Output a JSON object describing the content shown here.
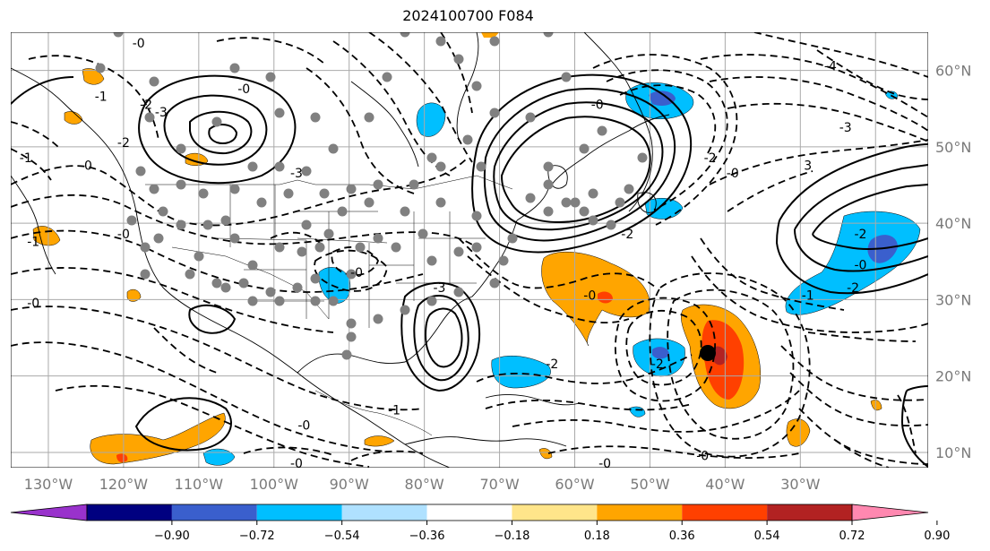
{
  "title": "2024100700 F084",
  "map": {
    "lon_ticks": [
      "130°W",
      "120°W",
      "110°W",
      "100°W",
      "90°W",
      "80°W",
      "70°W",
      "60°W",
      "50°W",
      "40°W",
      "30°W"
    ],
    "lat_ticks": [
      "60°N",
      "50°N",
      "40°N",
      "30°N",
      "20°N",
      "10°N"
    ],
    "extent": {
      "lon": [
        -135,
        -13
      ],
      "lat": [
        8,
        65
      ]
    }
  },
  "contour_labels": [
    {
      "text": "-0",
      "lon": -118,
      "lat": 63
    },
    {
      "text": "-1",
      "lon": -123,
      "lat": 56
    },
    {
      "text": "-2",
      "lon": -117,
      "lat": 55
    },
    {
      "text": "-3",
      "lon": -115,
      "lat": 54
    },
    {
      "text": "-0",
      "lon": -104,
      "lat": 57
    },
    {
      "text": "-1",
      "lon": -133,
      "lat": 48
    },
    {
      "text": "-0",
      "lon": -125,
      "lat": 47
    },
    {
      "text": "-1",
      "lon": -132,
      "lat": 37
    },
    {
      "text": "-0",
      "lon": -132,
      "lat": 29
    },
    {
      "text": "-2",
      "lon": -120,
      "lat": 50
    },
    {
      "text": "-3",
      "lon": -97,
      "lat": 46
    },
    {
      "text": "-0",
      "lon": -89,
      "lat": 33
    },
    {
      "text": "-3",
      "lon": -78,
      "lat": 31
    },
    {
      "text": "-0",
      "lon": -58,
      "lat": 30
    },
    {
      "text": "-2",
      "lon": -63,
      "lat": 21
    },
    {
      "text": "-2",
      "lon": -49,
      "lat": 21
    },
    {
      "text": "-0",
      "lon": -57,
      "lat": 55
    },
    {
      "text": "-2",
      "lon": -22,
      "lat": 38
    },
    {
      "text": "-1",
      "lon": -29,
      "lat": 30
    },
    {
      "text": "-2",
      "lon": -23,
      "lat": 31
    },
    {
      "text": "-0",
      "lon": -22,
      "lat": 34
    },
    {
      "text": "-3",
      "lon": -24,
      "lat": 52
    },
    {
      "text": "-2",
      "lon": -42,
      "lat": 48
    },
    {
      "text": "-0",
      "lon": -39,
      "lat": 46
    },
    {
      "text": "3",
      "lon": -29,
      "lat": 47
    },
    {
      "text": "-4",
      "lon": -26,
      "lat": 60
    },
    {
      "text": "-1",
      "lon": -84,
      "lat": 15
    },
    {
      "text": "-0",
      "lon": -96,
      "lat": 13
    },
    {
      "text": "-0",
      "lon": -97,
      "lat": 8
    },
    {
      "text": "-0",
      "lon": -56,
      "lat": 8
    },
    {
      "text": "-0",
      "lon": -43,
      "lat": 9
    },
    {
      "text": "-2",
      "lon": -53,
      "lat": 38
    },
    {
      "text": "-0",
      "lon": -120,
      "lat": 38
    }
  ],
  "colorbar": {
    "ticks": [
      "−0.90",
      "−0.72",
      "−0.54",
      "−0.36",
      "−0.18",
      "0.18",
      "0.36",
      "0.54",
      "0.72",
      "0.90"
    ],
    "colors": [
      "#9932cc",
      "#000080",
      "#3a5fcd",
      "#00bfff",
      "#afe1ff",
      "#ffffff",
      "#ffe58a",
      "#ffa500",
      "#ff4000",
      "#b22222",
      "#ff88b0"
    ]
  },
  "colors": {
    "grid": "#aaaaaa",
    "axis": "#000000"
  }
}
